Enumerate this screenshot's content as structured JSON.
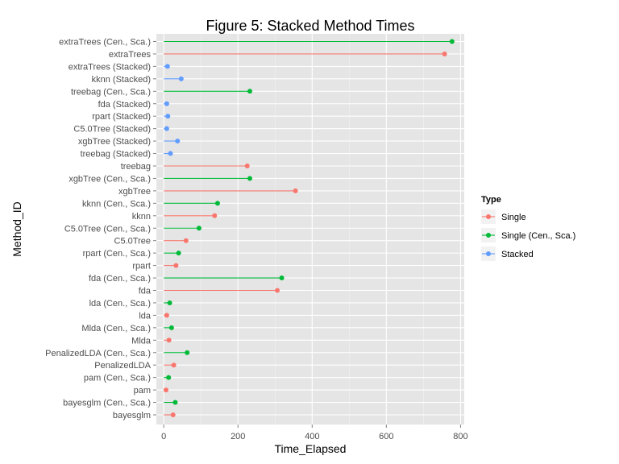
{
  "chart_data": {
    "type": "scatter",
    "title": "Figure 5: Stacked Method Times",
    "xlabel": "Time_Elapsed",
    "ylabel": "Method_ID",
    "xlim": [
      -20,
      810
    ],
    "xticks": [
      0,
      200,
      400,
      600,
      800
    ],
    "grid": true,
    "legend": {
      "title": "Type",
      "placement": "right",
      "entries": [
        {
          "name": "Single",
          "color": "#F8766D"
        },
        {
          "name": "Single (Cen., Sca.)",
          "color": "#00BA38"
        },
        {
          "name": "Stacked",
          "color": "#619CFF"
        }
      ]
    },
    "points": [
      {
        "label": "extraTrees (Cen., Sca.)",
        "value": 777,
        "type": "Single (Cen., Sca.)"
      },
      {
        "label": "extraTrees",
        "value": 757,
        "type": "Single"
      },
      {
        "label": "extraTrees (Stacked)",
        "value": 10,
        "type": "Stacked"
      },
      {
        "label": "kknn (Stacked)",
        "value": 47,
        "type": "Stacked"
      },
      {
        "label": "treebag (Cen., Sca.)",
        "value": 232,
        "type": "Single (Cen., Sca.)"
      },
      {
        "label": "fda (Stacked)",
        "value": 8,
        "type": "Stacked"
      },
      {
        "label": "rpart (Stacked)",
        "value": 11,
        "type": "Stacked"
      },
      {
        "label": "C5.0Tree (Stacked)",
        "value": 8,
        "type": "Stacked"
      },
      {
        "label": "xgbTree (Stacked)",
        "value": 37,
        "type": "Stacked"
      },
      {
        "label": "treebag (Stacked)",
        "value": 18,
        "type": "Stacked"
      },
      {
        "label": "treebag",
        "value": 225,
        "type": "Single"
      },
      {
        "label": "xgbTree (Cen., Sca.)",
        "value": 232,
        "type": "Single (Cen., Sca.)"
      },
      {
        "label": "xgbTree",
        "value": 355,
        "type": "Single"
      },
      {
        "label": "kknn (Cen., Sca.)",
        "value": 145,
        "type": "Single (Cen., Sca.)"
      },
      {
        "label": "kknn",
        "value": 137,
        "type": "Single"
      },
      {
        "label": "C5.0Tree (Cen., Sca.)",
        "value": 95,
        "type": "Single (Cen., Sca.)"
      },
      {
        "label": "C5.0Tree",
        "value": 60,
        "type": "Single"
      },
      {
        "label": "rpart (Cen., Sca.)",
        "value": 40,
        "type": "Single (Cen., Sca.)"
      },
      {
        "label": "rpart",
        "value": 33,
        "type": "Single"
      },
      {
        "label": "fda (Cen., Sca.)",
        "value": 318,
        "type": "Single (Cen., Sca.)"
      },
      {
        "label": "fda",
        "value": 306,
        "type": "Single"
      },
      {
        "label": "lda (Cen., Sca.)",
        "value": 16,
        "type": "Single (Cen., Sca.)"
      },
      {
        "label": "lda",
        "value": 8,
        "type": "Single"
      },
      {
        "label": "Mlda (Cen., Sca.)",
        "value": 21,
        "type": "Single (Cen., Sca.)"
      },
      {
        "label": "Mlda",
        "value": 14,
        "type": "Single"
      },
      {
        "label": "PenalizedLDA (Cen., Sca.)",
        "value": 63,
        "type": "Single (Cen., Sca.)"
      },
      {
        "label": "PenalizedLDA",
        "value": 27,
        "type": "Single"
      },
      {
        "label": "pam (Cen., Sca.)",
        "value": 13,
        "type": "Single (Cen., Sca.)"
      },
      {
        "label": "pam",
        "value": 6,
        "type": "Single"
      },
      {
        "label": "bayesglm (Cen., Sca.)",
        "value": 31,
        "type": "Single (Cen., Sca.)"
      },
      {
        "label": "bayesglm",
        "value": 25,
        "type": "Single"
      }
    ]
  }
}
